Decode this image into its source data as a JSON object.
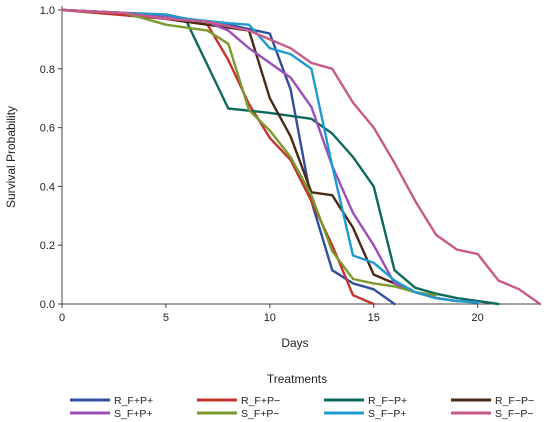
{
  "chart_data": {
    "type": "line",
    "title": "",
    "xlabel": "Days",
    "ylabel": "Survival Probability",
    "xlim": [
      0,
      23
    ],
    "ylim": [
      0,
      1
    ],
    "xticks": [
      0,
      5,
      10,
      15,
      20
    ],
    "yticks": [
      0.0,
      0.2,
      0.4,
      0.6,
      0.8,
      1.0
    ],
    "ytick_labels": [
      "0.0",
      "0.2",
      "0.4",
      "0.6",
      "0.8",
      "1.0"
    ],
    "grid": false,
    "legend": {
      "title": "Treatments",
      "placement": "bottom",
      "columns": 4
    },
    "series": [
      {
        "name": "R_F+P+",
        "color": "#2f4e9b",
        "points": [
          [
            0,
            1.0
          ],
          [
            3,
            0.99
          ],
          [
            5,
            0.98
          ],
          [
            8,
            0.95
          ],
          [
            10,
            0.92
          ],
          [
            11,
            0.73
          ],
          [
            12,
            0.35
          ],
          [
            13,
            0.115
          ],
          [
            14,
            0.07
          ],
          [
            15,
            0.05
          ],
          [
            16,
            0.0
          ]
        ]
      },
      {
        "name": "R_F+P−",
        "color": "#c4342c",
        "points": [
          [
            0,
            1.0
          ],
          [
            5,
            0.97
          ],
          [
            7,
            0.95
          ],
          [
            8,
            0.83
          ],
          [
            9,
            0.68
          ],
          [
            10,
            0.565
          ],
          [
            11,
            0.49
          ],
          [
            12,
            0.35
          ],
          [
            13,
            0.2
          ],
          [
            14,
            0.03
          ],
          [
            15,
            0.0
          ]
        ]
      },
      {
        "name": "R_F−P+",
        "color": "#0f6a5e",
        "points": [
          [
            0,
            1.0
          ],
          [
            3,
            0.99
          ],
          [
            5,
            0.97
          ],
          [
            6,
            0.96
          ],
          [
            8,
            0.665
          ],
          [
            10,
            0.65
          ],
          [
            12,
            0.63
          ],
          [
            13,
            0.58
          ],
          [
            14,
            0.5
          ],
          [
            15,
            0.4
          ],
          [
            16,
            0.115
          ],
          [
            17,
            0.055
          ],
          [
            18,
            0.035
          ],
          [
            19,
            0.02
          ],
          [
            21,
            0.0
          ]
        ]
      },
      {
        "name": "R_F−P−",
        "color": "#4a2a16",
        "points": [
          [
            0,
            1.0
          ],
          [
            3,
            0.99
          ],
          [
            5,
            0.97
          ],
          [
            7,
            0.95
          ],
          [
            9,
            0.93
          ],
          [
            10,
            0.7
          ],
          [
            11,
            0.57
          ],
          [
            12,
            0.38
          ],
          [
            13,
            0.37
          ],
          [
            14,
            0.26
          ],
          [
            15,
            0.1
          ],
          [
            16,
            0.07
          ],
          [
            17,
            0.04
          ],
          [
            18,
            0.02
          ],
          [
            19,
            0.01
          ]
        ]
      },
      {
        "name": "S_F+P+",
        "color": "#9b4fb8",
        "points": [
          [
            0,
            1.0
          ],
          [
            3,
            0.99
          ],
          [
            5,
            0.98
          ],
          [
            7,
            0.96
          ],
          [
            8,
            0.93
          ],
          [
            9,
            0.87
          ],
          [
            10,
            0.82
          ],
          [
            11,
            0.77
          ],
          [
            12,
            0.67
          ],
          [
            13,
            0.47
          ],
          [
            14,
            0.31
          ],
          [
            15,
            0.2
          ],
          [
            16,
            0.07
          ],
          [
            17,
            0.04
          ],
          [
            18,
            0.02
          ],
          [
            19,
            0.01
          ]
        ]
      },
      {
        "name": "S_F+P−",
        "color": "#7a9a2e",
        "points": [
          [
            0,
            1.0
          ],
          [
            3,
            0.99
          ],
          [
            5,
            0.95
          ],
          [
            7,
            0.93
          ],
          [
            8,
            0.885
          ],
          [
            9,
            0.66
          ],
          [
            10,
            0.59
          ],
          [
            11,
            0.5
          ],
          [
            12,
            0.37
          ],
          [
            13,
            0.18
          ],
          [
            14,
            0.085
          ],
          [
            15,
            0.07
          ],
          [
            16,
            0.06
          ],
          [
            17,
            0.04
          ],
          [
            18,
            0.03
          ]
        ]
      },
      {
        "name": "S_F−P+",
        "color": "#1f9ad0",
        "points": [
          [
            0,
            1.0
          ],
          [
            3,
            0.99
          ],
          [
            5,
            0.985
          ],
          [
            6,
            0.97
          ],
          [
            8,
            0.955
          ],
          [
            9,
            0.95
          ],
          [
            10,
            0.87
          ],
          [
            11,
            0.85
          ],
          [
            12,
            0.8
          ],
          [
            13,
            0.47
          ],
          [
            14,
            0.165
          ],
          [
            15,
            0.14
          ],
          [
            16,
            0.08
          ],
          [
            17,
            0.04
          ],
          [
            18,
            0.02
          ],
          [
            19,
            0.01
          ],
          [
            20,
            0.005
          ]
        ]
      },
      {
        "name": "S_F−P−",
        "color": "#c75a8b",
        "points": [
          [
            0,
            1.0
          ],
          [
            3,
            0.99
          ],
          [
            5,
            0.97
          ],
          [
            7,
            0.96
          ],
          [
            9,
            0.93
          ],
          [
            10,
            0.9
          ],
          [
            11,
            0.87
          ],
          [
            12,
            0.82
          ],
          [
            13,
            0.8
          ],
          [
            14,
            0.685
          ],
          [
            15,
            0.6
          ],
          [
            16,
            0.48
          ],
          [
            17,
            0.35
          ],
          [
            18,
            0.235
          ],
          [
            19,
            0.185
          ],
          [
            20,
            0.17
          ],
          [
            21,
            0.08
          ],
          [
            22,
            0.05
          ],
          [
            23,
            0.0
          ]
        ]
      }
    ]
  }
}
